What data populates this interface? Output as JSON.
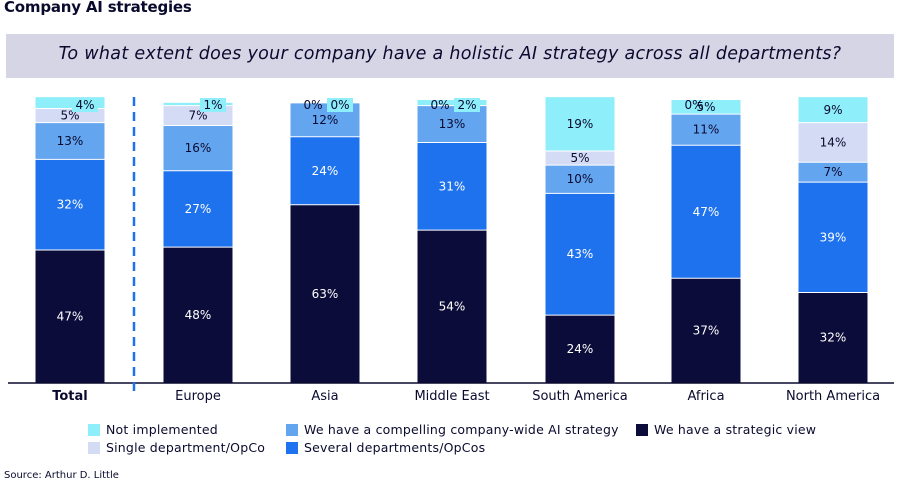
{
  "title": "Company AI strategies",
  "question": "To what extent does your company have a holistic AI strategy across all departments?",
  "source": "Source: Arthur D. Little",
  "colors": {
    "not_implemented": "#8eeefa",
    "single_department": "#d4dcf5",
    "compelling_strategy": "#64a5f0",
    "several_departments": "#1f72ee",
    "strategic_view": "#0c0c3b",
    "divider": "#1f72ee"
  },
  "legend": [
    {
      "key": "not_implemented",
      "label": "Not implemented"
    },
    {
      "key": "single_department",
      "label": "Single department/OpCo"
    },
    {
      "key": "compelling_strategy",
      "label": "We have a compelling company-wide AI strategy"
    },
    {
      "key": "several_departments",
      "label": "Several departments/OpCos"
    },
    {
      "key": "strategic_view",
      "label": "We have a strategic view"
    }
  ],
  "chart_data": {
    "type": "bar",
    "stacked": true,
    "categories": [
      "Total",
      "Europe",
      "Asia",
      "Middle East",
      "South America",
      "Africa",
      "North America"
    ],
    "series": [
      {
        "name": "We have a strategic view",
        "key": "strategic_view",
        "values": [
          47,
          48,
          63,
          54,
          24,
          37,
          32
        ],
        "labels": [
          "47%",
          "48%",
          "63%",
          "54%",
          "24%",
          "37%",
          "32%"
        ]
      },
      {
        "name": "Several departments/OpCos",
        "key": "several_departments",
        "values": [
          32,
          27,
          24,
          31,
          43,
          47,
          39
        ],
        "labels": [
          "32%",
          "27%",
          "24%",
          "31%",
          "43%",
          "47%",
          "39%"
        ]
      },
      {
        "name": "We have a compelling company-wide AI strategy",
        "key": "compelling_strategy",
        "values": [
          13,
          16,
          12,
          13,
          10,
          11,
          7
        ],
        "labels": [
          "13%",
          "16%",
          "12%",
          "13%",
          "10%",
          "11%",
          "7%"
        ]
      },
      {
        "name": "Single department/OpCo",
        "key": "single_department",
        "values": [
          5,
          7,
          0,
          0,
          5,
          0,
          14
        ],
        "labels": [
          "5%",
          "7%",
          "0%",
          "0%",
          "5%",
          "0%",
          "14%"
        ]
      },
      {
        "name": "Not implemented",
        "key": "not_implemented",
        "values": [
          4,
          1,
          0,
          2,
          19,
          5,
          9
        ],
        "labels": [
          "4%",
          "1%",
          "0%",
          "2%",
          "19%",
          "5%",
          "9%"
        ]
      }
    ],
    "ylim": [
      0,
      100
    ],
    "highlight_category": "Total"
  }
}
